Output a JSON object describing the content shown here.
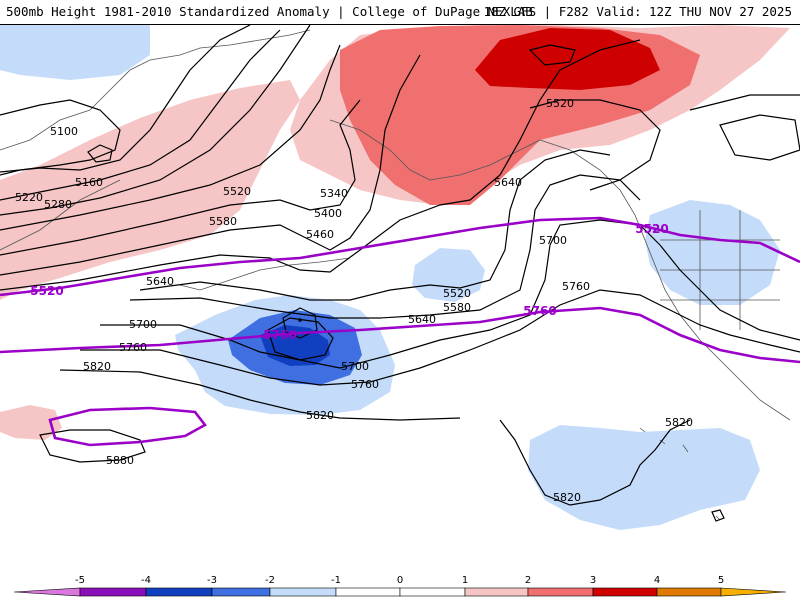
{
  "title": {
    "left": "500mb Height 1981-2010 Standardized Anomaly | College of DuPage NEXLAB",
    "right": "18Z GFS | F282 Valid: 12Z THU NOV 27 2025"
  },
  "colors": {
    "neg5": "#d977dd",
    "neg4": "#8a0fb8",
    "neg3": "#1040c0",
    "neg2": "#3f6fe0",
    "neg1": "#c4dcfa",
    "zero": "#ffffff",
    "pos1": "#f6c6c6",
    "pos2": "#f07070",
    "pos3": "#ce0000",
    "pos4": "#e07a00",
    "pos5": "#f7b000",
    "contour": "#000000",
    "highlight": "#9b00c8",
    "coast": "#555555"
  },
  "contour_labels": [
    {
      "text": "5100"
    },
    {
      "text": "5160"
    },
    {
      "text": "5220"
    },
    {
      "text": "5280"
    },
    {
      "text": "5520"
    },
    {
      "text": "5580"
    },
    {
      "text": "5340"
    },
    {
      "text": "5400"
    },
    {
      "text": "5460"
    },
    {
      "text": "5520"
    },
    {
      "text": "5640"
    },
    {
      "text": "5700"
    },
    {
      "text": "5520"
    },
    {
      "text": "5580"
    },
    {
      "text": "5640"
    },
    {
      "text": "5640"
    },
    {
      "text": "5700"
    },
    {
      "text": "5760"
    },
    {
      "text": "5820"
    },
    {
      "text": "5760"
    },
    {
      "text": "5700"
    },
    {
      "text": "5760"
    },
    {
      "text": "5820"
    },
    {
      "text": "5880"
    },
    {
      "text": "5820"
    },
    {
      "text": "5820"
    }
  ],
  "highlight_labels": [
    {
      "text": "5520"
    },
    {
      "text": "5760"
    },
    {
      "text": "5520"
    },
    {
      "text": "5760"
    }
  ],
  "colorbar": {
    "ticks": [
      "-5",
      "-4",
      "-3",
      "-2",
      "-1",
      "0",
      "1",
      "2",
      "3",
      "4",
      "5"
    ]
  }
}
